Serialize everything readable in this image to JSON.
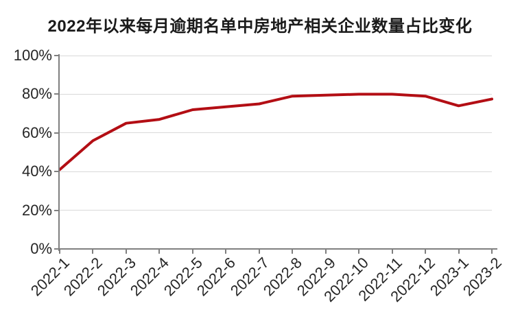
{
  "page": {
    "background_color": "#FFFFFF"
  },
  "chart_data": {
    "type": "line",
    "title": "2022年以来每月逾期名单中房地产相关企业数量占比变化",
    "categories": [
      "2022-1",
      "2022-2",
      "2022-3",
      "2022-4",
      "2022-5",
      "2022-6",
      "2022-7",
      "2022-8",
      "2022-9",
      "2022-10",
      "2022-11",
      "2022-12",
      "2023-1",
      "2023-2"
    ],
    "values": [
      41,
      56,
      65,
      67,
      72,
      73.5,
      75,
      79,
      79.5,
      80,
      80,
      79,
      74,
      77.5
    ],
    "xlabel": "",
    "ylabel": "",
    "ylim": [
      0,
      100
    ],
    "yticks": [
      0,
      20,
      40,
      60,
      80,
      100
    ],
    "ytick_suffix": "%",
    "grid": "horizontal",
    "legend": "none",
    "line_color": "#B30E14",
    "grid_color": "#D9D9D9",
    "axis_color": "#7F7F7F",
    "label_color": "#262626",
    "title_color": "#1A1A1A"
  }
}
